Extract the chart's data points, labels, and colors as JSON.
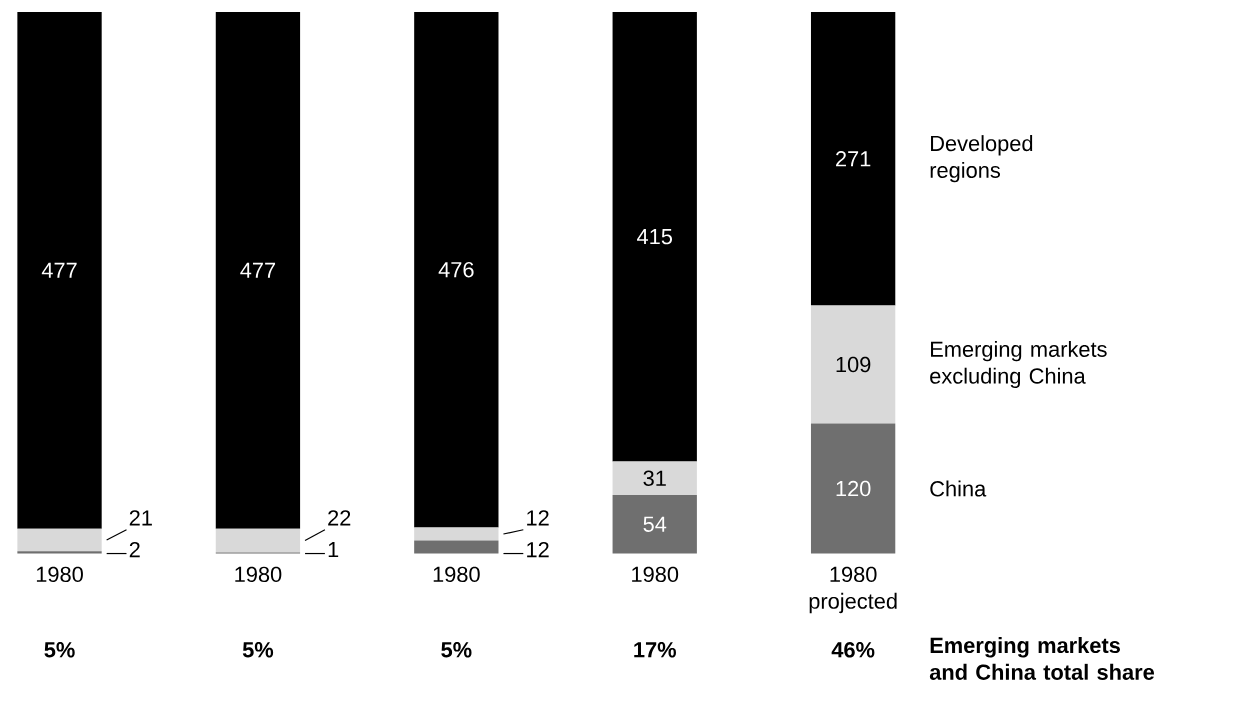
{
  "chart_data": {
    "type": "bar",
    "stacked": true,
    "data_labels": true,
    "legend": "right",
    "categories": [
      "1980",
      "1980",
      "1980",
      "1980",
      "1980 projected"
    ],
    "series": [
      {
        "name": "China",
        "color": "#6f6f6f",
        "values": [
          2,
          1,
          12,
          54,
          120
        ]
      },
      {
        "name": "Emerging markets excluding China",
        "color": "#d9d9d9",
        "values": [
          21,
          22,
          12,
          31,
          109
        ]
      },
      {
        "name": "Developed regions",
        "color": "#000000",
        "values": [
          477,
          477,
          476,
          415,
          271
        ]
      }
    ],
    "annotations": [
      "5%",
      "5%",
      "5%",
      "17%",
      "46%",
      "Emerging markets and China total share"
    ]
  }
}
